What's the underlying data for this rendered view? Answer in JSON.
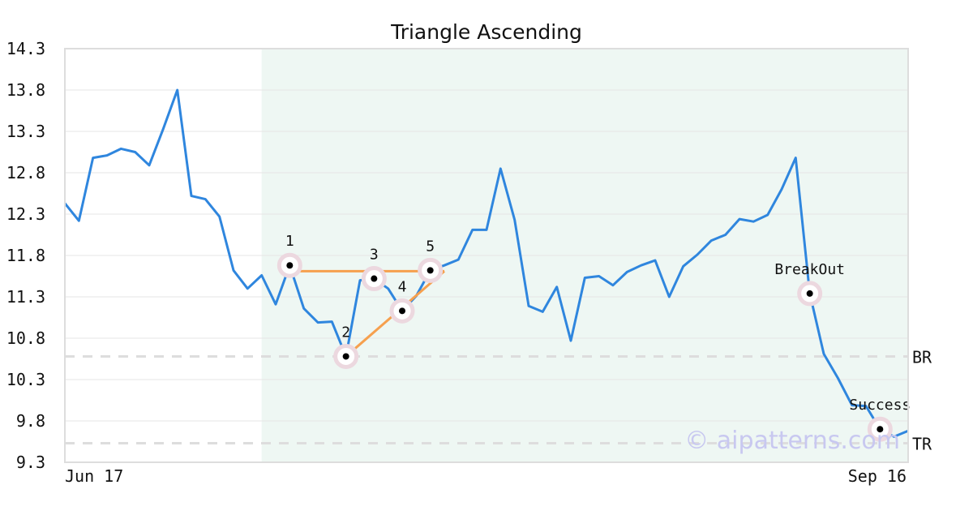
{
  "chart_data": {
    "type": "line",
    "title": "Triangle Ascending",
    "xlabel": "",
    "ylabel": "",
    "ylim": [
      9.3,
      14.3
    ],
    "y_ticks": [
      "14.3",
      "13.8",
      "13.3",
      "12.8",
      "12.3",
      "11.8",
      "11.3",
      "10.8",
      "10.3",
      "9.8",
      "9.3"
    ],
    "x_tick_labels": [
      "Jun 17",
      "Sep 16"
    ],
    "grid": true,
    "colors": {
      "price_line": "#2f86de",
      "pattern_lines": "#f6a04e",
      "pattern_zone": "#eef7f3",
      "ref_lines": "#dddddd",
      "marker_halo": "#ecd8df",
      "marker_dot": "#000000"
    },
    "series": [
      {
        "values": [
          12.43,
          12.22,
          12.98,
          13.01,
          13.09,
          13.05,
          12.89,
          13.33,
          13.8,
          12.52,
          12.48,
          12.27,
          11.62,
          11.4,
          11.56,
          11.21,
          11.68,
          11.16,
          10.99,
          11.0,
          10.58,
          11.5,
          11.52,
          11.4,
          11.13,
          11.31,
          11.62,
          11.68,
          11.75,
          12.11,
          12.11,
          12.85,
          12.23,
          11.19,
          11.12,
          11.42,
          10.77,
          11.53,
          11.55,
          11.44,
          11.6,
          11.68,
          11.74,
          11.3,
          11.67,
          11.81,
          11.98,
          12.05,
          12.24,
          12.21,
          12.29,
          12.6,
          12.98,
          11.34,
          10.61,
          10.32,
          9.99,
          9.98,
          9.7,
          9.61,
          9.68
        ]
      }
    ],
    "pattern_zone": {
      "start_index": 14,
      "end_index": 60
    },
    "pattern_lines": [
      {
        "from": [
          16,
          11.61
        ],
        "to": [
          27,
          11.61
        ]
      },
      {
        "from": [
          20,
          10.58
        ],
        "to": [
          27,
          11.61
        ]
      }
    ],
    "points": [
      {
        "label": "1",
        "index": 16,
        "value": 11.68
      },
      {
        "label": "2",
        "index": 20,
        "value": 10.58
      },
      {
        "label": "3",
        "index": 22,
        "value": 11.52
      },
      {
        "label": "4",
        "index": 24,
        "value": 11.13
      },
      {
        "label": "5",
        "index": 26,
        "value": 11.62
      },
      {
        "label": "BreakOut",
        "index": 53,
        "value": 11.34
      },
      {
        "label": "Success",
        "index": 58,
        "value": 9.7
      }
    ],
    "reference_lines": [
      {
        "label": "BR",
        "value": 10.58
      },
      {
        "label": "TR",
        "value": 9.53
      }
    ],
    "watermark": "© aipatterns.com"
  }
}
